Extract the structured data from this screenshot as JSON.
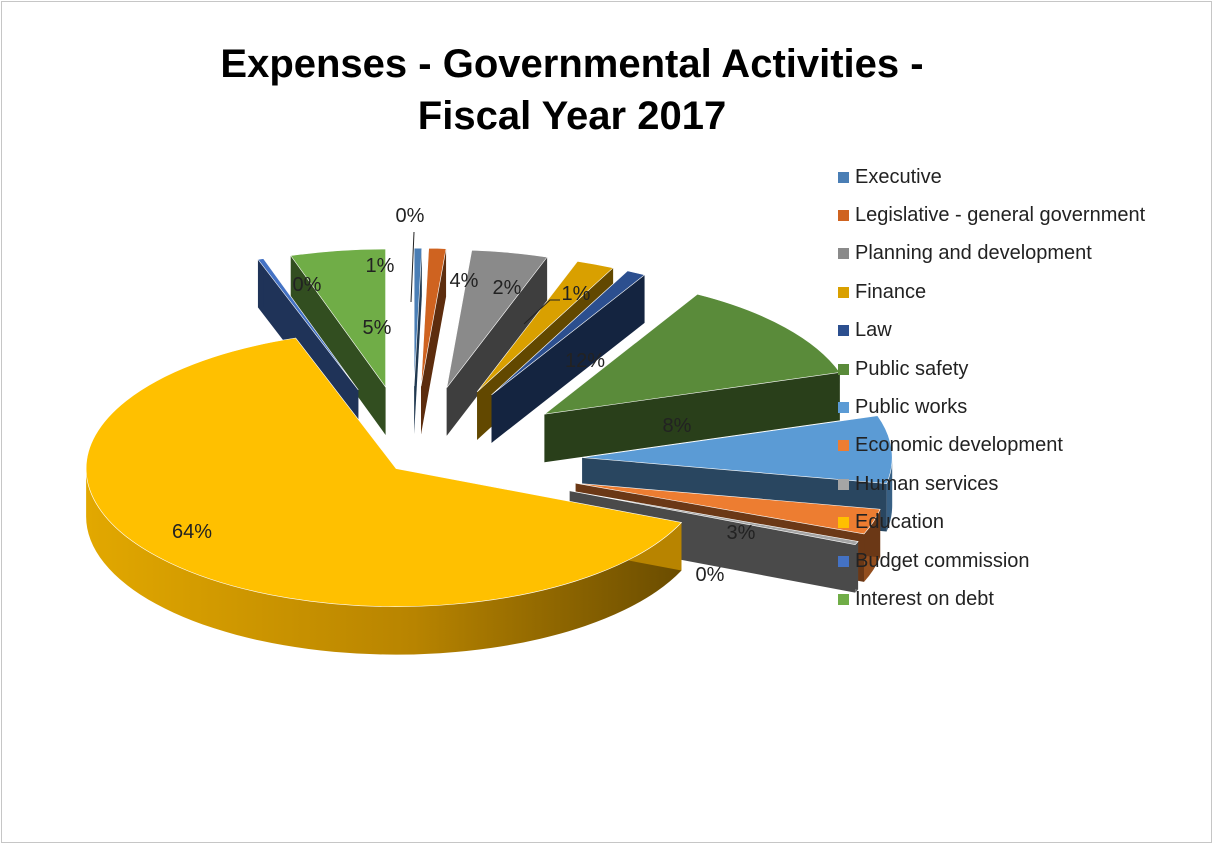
{
  "chart_data": {
    "type": "pie",
    "title_lines": [
      "Expenses - Governmental Activities -",
      "Fiscal Year 2017"
    ],
    "legend_position": "right",
    "three_d": true,
    "exploded": true,
    "slices": [
      {
        "name": "Executive",
        "value": 0.4,
        "label": "0%",
        "color": "#4a7eb5"
      },
      {
        "name": "Legislative - general government",
        "value": 0.9,
        "label": "1%",
        "color": "#cf6320"
      },
      {
        "name": "Planning and development",
        "value": 4.0,
        "label": "4%",
        "color": "#8a8a8a"
      },
      {
        "name": "Finance",
        "value": 2.0,
        "label": "2%",
        "color": "#d9a000"
      },
      {
        "name": "Law",
        "value": 1.0,
        "label": "1%",
        "color": "#2c4f8f"
      },
      {
        "name": "Public safety",
        "value": 12.0,
        "label": "12%",
        "color": "#5a8b3a"
      },
      {
        "name": "Public works",
        "value": 8.0,
        "label": "8%",
        "color": "#5b9bd5"
      },
      {
        "name": "Economic development",
        "value": 3.0,
        "label": "3%",
        "color": "#ed7d31"
      },
      {
        "name": "Human services",
        "value": 0.4,
        "label": "0%",
        "color": "#a5a5a5"
      },
      {
        "name": "Education",
        "value": 64.0,
        "label": "64%",
        "color": "#ffc000"
      },
      {
        "name": "Budget commission",
        "value": 0.3,
        "label": "0%",
        "color": "#4472c4"
      },
      {
        "name": "Interest on debt",
        "value": 5.0,
        "label": "5%",
        "color": "#70ad47"
      }
    ]
  }
}
